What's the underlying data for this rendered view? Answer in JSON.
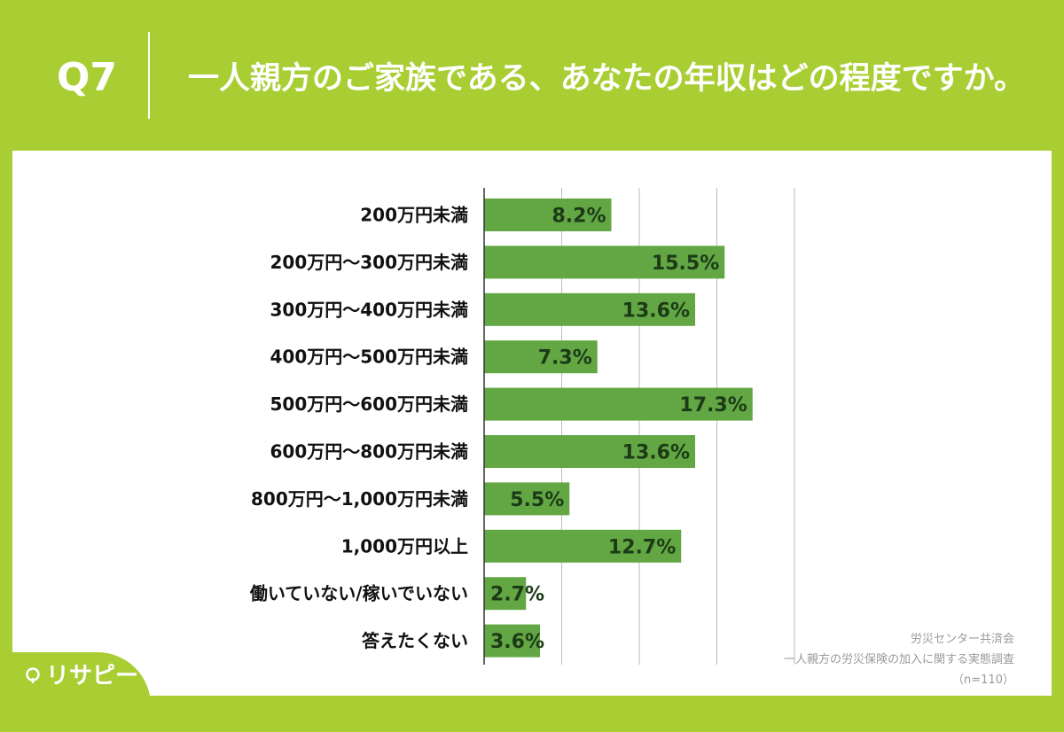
{
  "header": {
    "question_number": "Q7",
    "title": "一人親方のご家族である、あなたの年収はどの程度ですか。"
  },
  "chart_data": {
    "type": "bar",
    "orientation": "horizontal",
    "title": "一人親方のご家族である、あなたの年収はどの程度ですか。",
    "xlabel": "",
    "ylabel": "",
    "xlim": [
      0,
      35
    ],
    "grid": true,
    "categories": [
      "200万円未満",
      "200万円〜300万円未満",
      "300万円〜400万円未満",
      "400万円〜500万円未満",
      "500万円〜600万円未満",
      "600万円〜800万円未満",
      "800万円〜1,000万円未満",
      "1,000万円以上",
      "働いていない/稼いでいない",
      "答えたくない"
    ],
    "values": [
      8.2,
      15.5,
      13.6,
      7.3,
      17.3,
      13.6,
      5.5,
      12.7,
      2.7,
      3.6
    ],
    "value_labels": [
      "8.2%",
      "15.5%",
      "13.6%",
      "7.3%",
      "17.3%",
      "13.6%",
      "5.5%",
      "12.7%",
      "2.7%",
      "3.6%"
    ],
    "bar_color": "#62a744"
  },
  "source": {
    "organization": "労災センター共済会",
    "survey": "一人親方の労災保険の加入に関する実態調査",
    "sample": "（n=110）"
  },
  "brand": {
    "name": "リサピー",
    "icon": "pin-icon"
  },
  "colors": {
    "background": "#a9ce33",
    "bar": "#62a744",
    "gridline": "#bbbbbb"
  }
}
